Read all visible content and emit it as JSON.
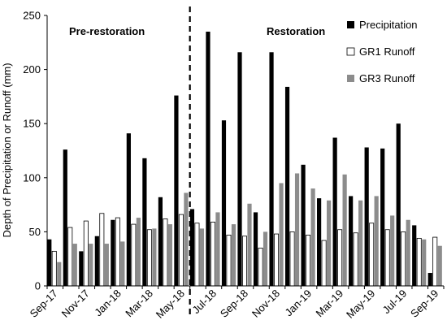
{
  "chart_data": {
    "type": "bar",
    "ylabel": "Depth of Precipitation or Runoff (mm)",
    "xlabel": "",
    "ylim": [
      0,
      250
    ],
    "yticks": [
      0,
      50,
      100,
      150,
      200,
      250
    ],
    "grid": false,
    "legend_position": "top-right",
    "categories": [
      "Sep-17",
      "Oct-17",
      "Nov-17",
      "Dec-17",
      "Jan-18",
      "Feb-18",
      "Mar-18",
      "Apr-18",
      "May-18",
      "Jun-18",
      "Jul-18",
      "Aug-18",
      "Sep-18",
      "Oct-18",
      "Nov-18",
      "Dec-18",
      "Jan-19",
      "Feb-19",
      "Mar-19",
      "Apr-19",
      "May-19",
      "Jun-19",
      "Jul-19",
      "Aug-19",
      "Sep-19"
    ],
    "x_tick_labels": [
      "Sep-17",
      "Nov-17",
      "Jan-18",
      "Mar-18",
      "May-18",
      "Jul-18",
      "Sep-18",
      "Nov-18",
      "Jan-19",
      "Mar-19",
      "May-19",
      "Jul-19",
      "Sep-19"
    ],
    "period_divider_after": "May-18",
    "annotations": [
      "Pre-restoration",
      "Restoration"
    ],
    "series": [
      {
        "name": "Precipitation",
        "color": "#000000",
        "style": "solid",
        "values": [
          43,
          126,
          32,
          46,
          61,
          141,
          118,
          82,
          176,
          71,
          235,
          153,
          216,
          68,
          216,
          184,
          112,
          81,
          137,
          83,
          128,
          127,
          150,
          56,
          12
        ]
      },
      {
        "name": "GR1 Runoff",
        "color": "#ffffff",
        "style": "outline",
        "values": [
          32,
          54,
          60,
          67,
          63,
          57,
          52,
          62,
          66,
          58,
          59,
          47,
          46,
          35,
          48,
          50,
          47,
          42,
          52,
          49,
          58,
          52,
          50,
          44,
          45
        ]
      },
      {
        "name": "GR3 Runoff",
        "color": "#8c8c8c",
        "style": "solid",
        "values": [
          22,
          39,
          39,
          39,
          41,
          63,
          53,
          57,
          86,
          53,
          68,
          57,
          76,
          50,
          95,
          104,
          90,
          79,
          103,
          79,
          83,
          65,
          61,
          43,
          37
        ]
      }
    ]
  }
}
